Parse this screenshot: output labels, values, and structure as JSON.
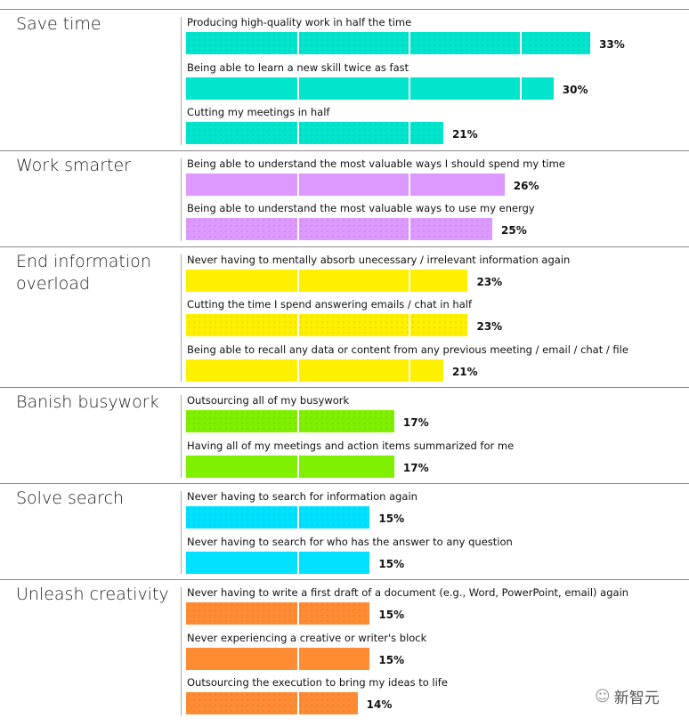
{
  "chart_data": {
    "type": "bar",
    "orientation": "horizontal",
    "unit": "%",
    "groups": [
      {
        "title": "Save time",
        "color": "#00e5cc",
        "items": [
          {
            "label": "Producing high-quality work in half the time",
            "value": 33
          },
          {
            "label": "Being able to learn a new skill twice as fast",
            "value": 30
          },
          {
            "label": "Cutting my meetings in half",
            "value": 21
          }
        ]
      },
      {
        "title": "Work smarter",
        "color": "#dd99ff",
        "items": [
          {
            "label": "Being able to understand the most valuable ways I should spend my time",
            "value": 26
          },
          {
            "label": "Being able to understand the most valuable ways to use my energy",
            "value": 25
          }
        ]
      },
      {
        "title": "End information overload",
        "color": "#fff000",
        "items": [
          {
            "label": "Never having to mentally absorb unecessary / irrelevant information again",
            "value": 23
          },
          {
            "label": "Cutting the time I spend answering emails / chat in half",
            "value": 23
          },
          {
            "label": "Being able to recall any data or content from any previous meeting / email / chat / file",
            "value": 21
          }
        ]
      },
      {
        "title": "Banish busywork",
        "color": "#7ff000",
        "items": [
          {
            "label": "Outsourcing all of my busywork",
            "value": 17
          },
          {
            "label": "Having all of my meetings and action items summarized for me",
            "value": 17
          }
        ]
      },
      {
        "title": "Solve search",
        "color": "#00e0ff",
        "items": [
          {
            "label": "Never having to search for information again",
            "value": 15
          },
          {
            "label": "Never having to search for who has the answer to any question",
            "value": 15
          }
        ]
      },
      {
        "title": "Unleash creativity",
        "color": "#ff8c33",
        "items": [
          {
            "label": "Never having to write a first draft of a document (e.g., Word, PowerPoint, email) again",
            "value": 15
          },
          {
            "label": "Never experiencing a creative or writer's block",
            "value": 15
          },
          {
            "label": "Outsourcing the execution to bring my ideas to life",
            "value": 14
          }
        ]
      }
    ]
  },
  "watermark": "新智元"
}
